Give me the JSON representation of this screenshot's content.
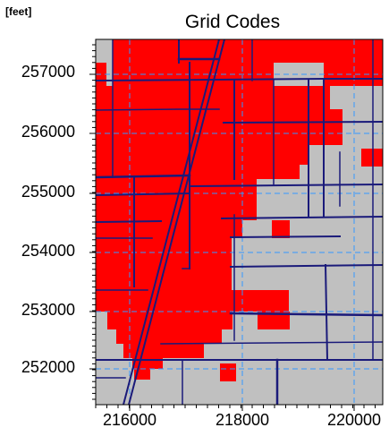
{
  "map": {
    "title": "Grid Codes",
    "unit_label": "[feet]",
    "y_ticks": [
      "257000",
      "256000",
      "255000",
      "254000",
      "253000",
      "252000"
    ],
    "x_ticks": [
      "216000",
      "218000",
      "220000"
    ],
    "colors": {
      "code_red": "#ff0000",
      "code_gray": "#c0c0c0",
      "road": "#1a1a7a",
      "grid": "#3399ff",
      "frame": "#000000"
    },
    "legend_codes": [
      "red",
      "gray"
    ]
  }
}
